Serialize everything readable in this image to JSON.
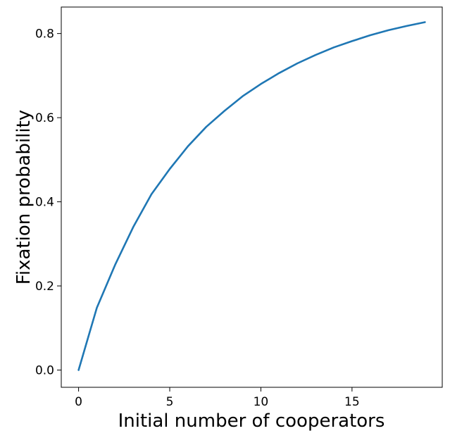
{
  "chart_data": {
    "type": "line",
    "title": "",
    "xlabel": "Initial number of cooperators",
    "ylabel": "Fixation probability",
    "xlim": [
      -0.95,
      19.95
    ],
    "ylim": [
      -0.041,
      0.863
    ],
    "xticks": [
      0,
      5,
      10,
      15
    ],
    "xtick_labels": [
      "0",
      "5",
      "10",
      "15"
    ],
    "yticks": [
      0.0,
      0.2,
      0.4,
      0.6,
      0.8
    ],
    "ytick_labels": [
      "0.0",
      "0.2",
      "0.4",
      "0.6",
      "0.8"
    ],
    "grid": false,
    "legend": "none",
    "series": [
      {
        "color": "#1f77b4",
        "x": [
          0,
          1,
          2,
          3,
          4,
          5,
          6,
          7,
          8,
          9,
          10,
          11,
          12,
          13,
          14,
          15,
          16,
          17,
          18,
          19
        ],
        "y": [
          0.0,
          0.148,
          0.25,
          0.34,
          0.418,
          0.478,
          0.532,
          0.578,
          0.616,
          0.651,
          0.68,
          0.706,
          0.729,
          0.749,
          0.767,
          0.782,
          0.796,
          0.808,
          0.818,
          0.827
        ]
      }
    ]
  }
}
